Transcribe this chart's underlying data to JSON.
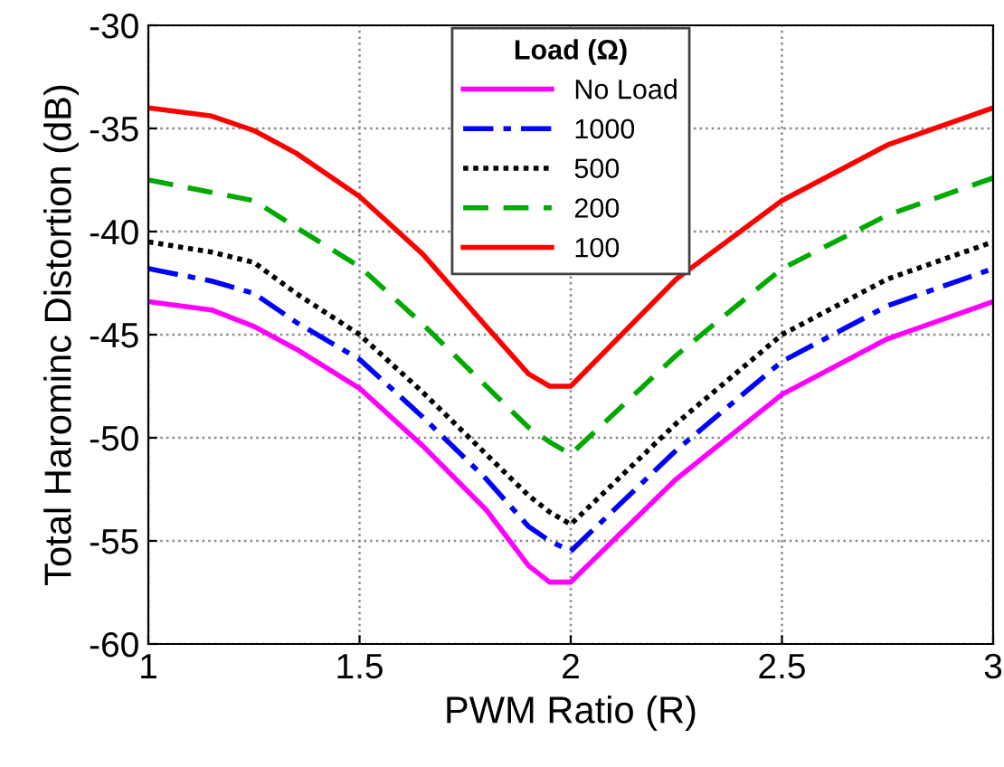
{
  "chart_data": {
    "type": "line",
    "xlabel": "PWM Ratio (R)",
    "ylabel": "Total Harominc Distortion (dB)",
    "legend_title": "Load (Ω)",
    "legend": "top",
    "grid": true,
    "x": [
      1,
      1.15,
      1.25,
      1.35,
      1.5,
      1.65,
      1.8,
      1.9,
      1.95,
      2,
      2.25,
      2.5,
      2.75,
      3
    ],
    "xlim": [
      1,
      3
    ],
    "xticks": [
      1,
      1.5,
      2,
      2.5,
      3
    ],
    "ylim": [
      -60,
      -30
    ],
    "yticks": [
      -60,
      -55,
      -50,
      -45,
      -40,
      -35,
      -30
    ],
    "series": [
      {
        "name": "No Load",
        "color": "#ff00ff",
        "line_style": "solid",
        "values": [
          -43.4,
          -43.8,
          -44.6,
          -45.7,
          -47.6,
          -50.4,
          -53.5,
          -56.2,
          -57.0,
          -57.0,
          -52.0,
          -47.9,
          -45.2,
          -43.4
        ]
      },
      {
        "name": "1000",
        "color": "#0000ff",
        "line_style": "dashdot",
        "values": [
          -41.8,
          -42.4,
          -43.0,
          -44.4,
          -46.2,
          -49.0,
          -52.0,
          -54.3,
          -55.0,
          -55.5,
          -50.6,
          -46.3,
          -43.6,
          -41.8
        ]
      },
      {
        "name": "500",
        "color": "#000000",
        "line_style": "dotted",
        "values": [
          -40.5,
          -41.0,
          -41.5,
          -43.0,
          -45.0,
          -47.8,
          -50.8,
          -52.8,
          -53.6,
          -54.2,
          -49.3,
          -45.0,
          -42.3,
          -40.5
        ]
      },
      {
        "name": "200",
        "color": "#00aa00",
        "line_style": "dashed",
        "values": [
          -37.5,
          -38.1,
          -38.5,
          -39.8,
          -41.7,
          -44.5,
          -47.5,
          -49.5,
          -50.2,
          -50.8,
          -46.0,
          -41.8,
          -39.2,
          -37.4
        ]
      },
      {
        "name": "100",
        "color": "#ff0000",
        "line_style": "solid",
        "values": [
          -34.0,
          -34.4,
          -35.1,
          -36.2,
          -38.3,
          -41.1,
          -44.6,
          -46.9,
          -47.5,
          -47.5,
          -42.3,
          -38.5,
          -35.8,
          -34.0
        ]
      }
    ]
  }
}
